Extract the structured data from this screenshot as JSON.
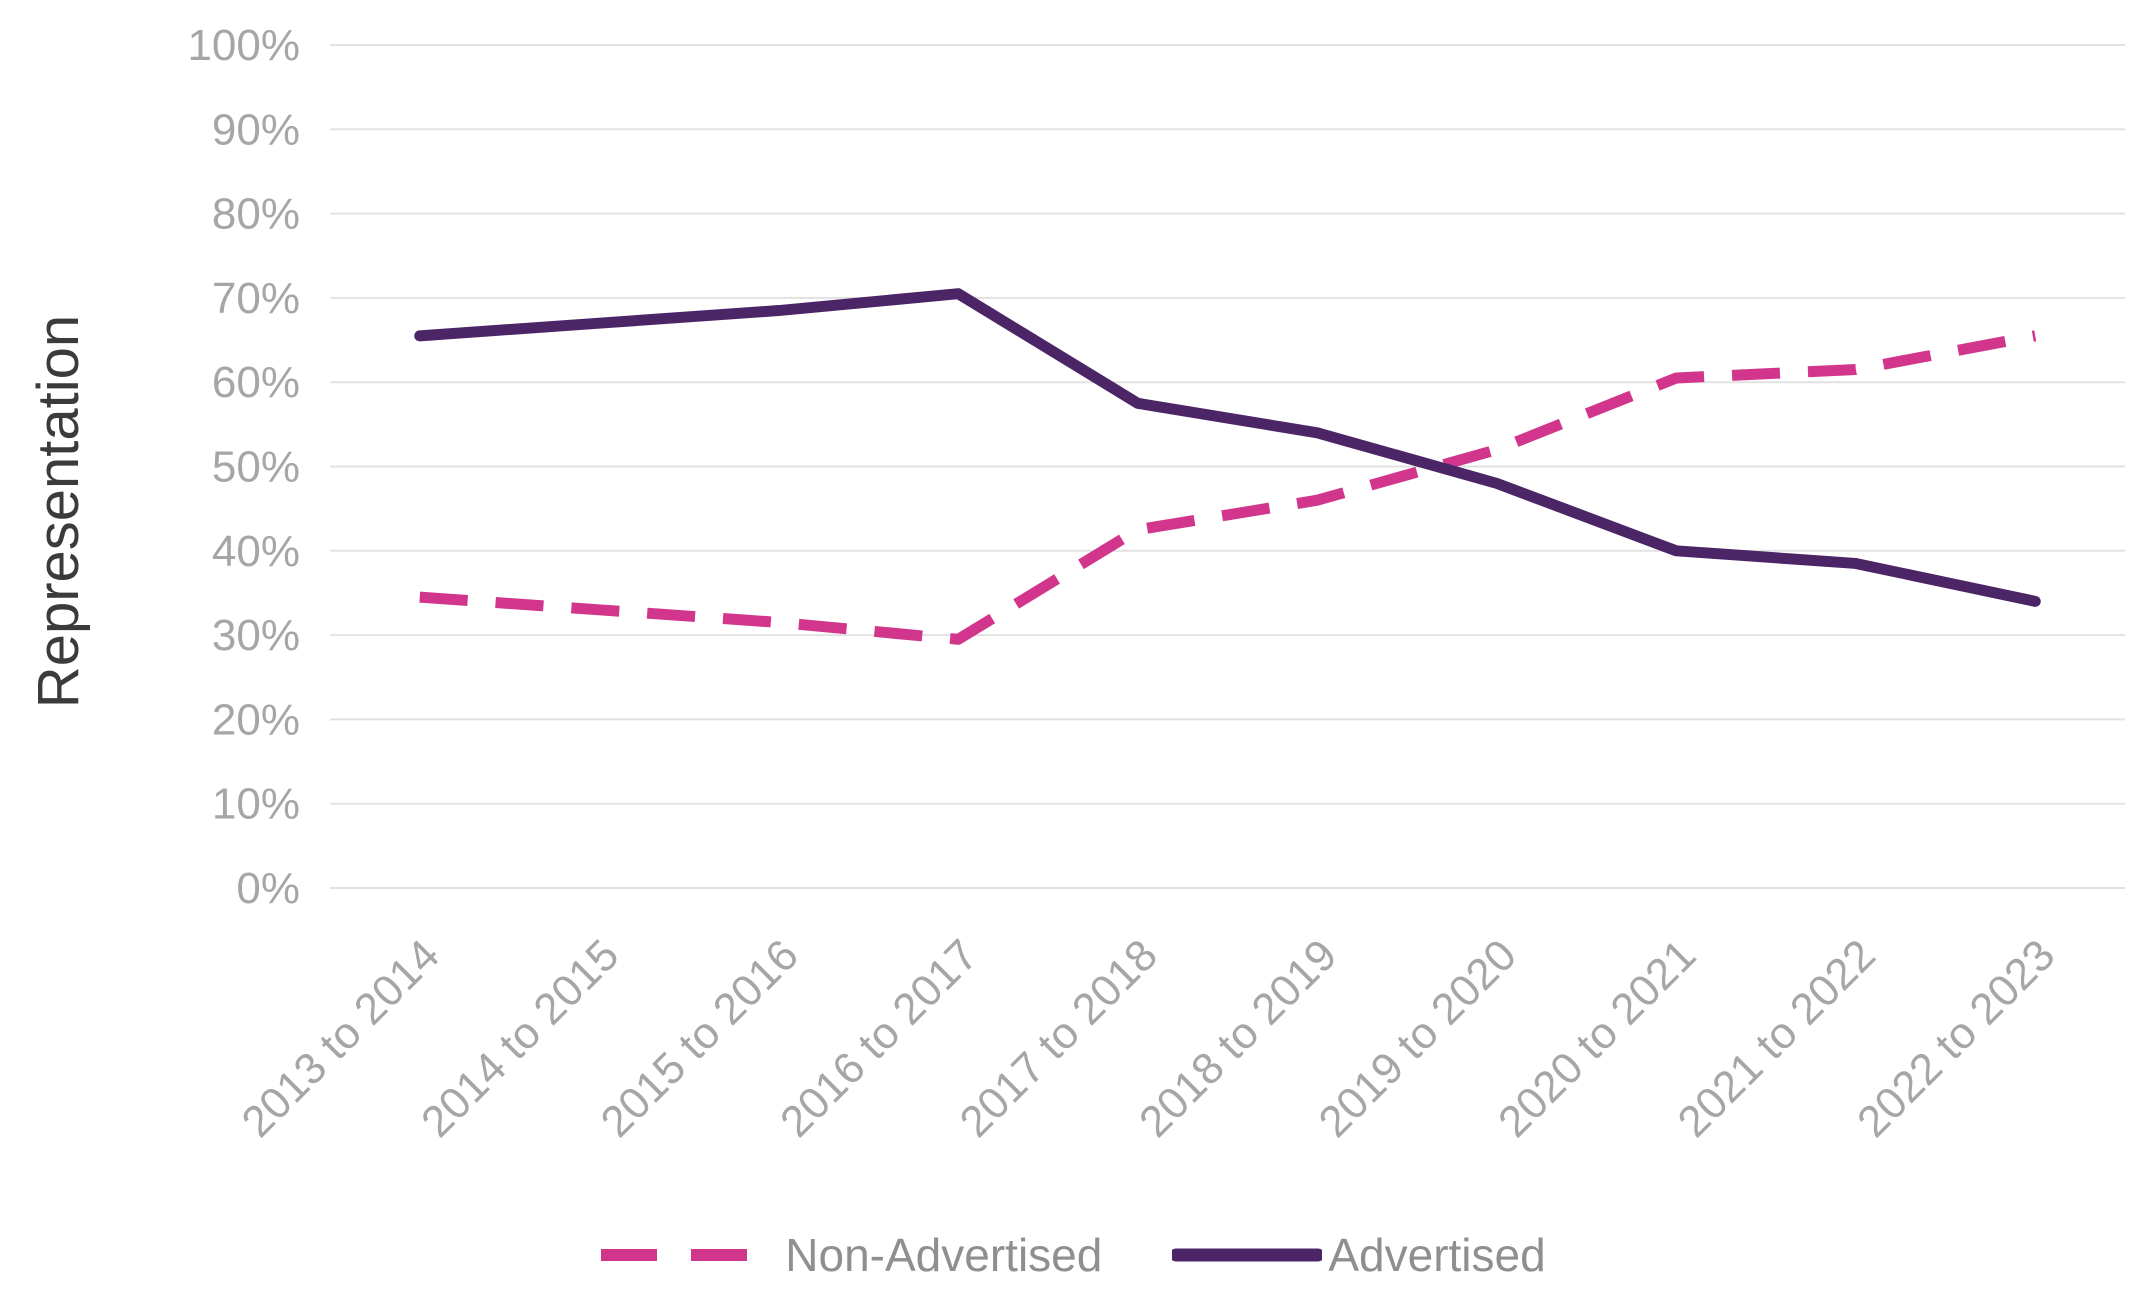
{
  "chart_data": {
    "type": "line",
    "title": "",
    "ylabel": "Representation",
    "xlabel": "",
    "ylim": [
      0,
      100
    ],
    "yticks": [
      0,
      10,
      20,
      30,
      40,
      50,
      60,
      70,
      80,
      90,
      100
    ],
    "ytick_suffix": "%",
    "grid": true,
    "legend_position": "bottom",
    "categories": [
      "2013 to 2014",
      "2014 to 2015",
      "2015 to 2016",
      "2016 to 2017",
      "2017 to 2018",
      "2018 to 2019",
      "2019 to 2020",
      "2020 to 2021",
      "2021 to 2022",
      "2022 to 2023"
    ],
    "series": [
      {
        "name": "Non-Advertised",
        "color": "#D2368C",
        "style": "dashed",
        "values": [
          34.5,
          33,
          31.5,
          29.5,
          42.5,
          46,
          52,
          60.5,
          61.5,
          65.5
        ]
      },
      {
        "name": "Advertised",
        "color": "#4C2566",
        "style": "solid",
        "values": [
          65.5,
          67,
          68.5,
          70.5,
          57.5,
          54,
          48,
          40,
          38.5,
          34
        ]
      }
    ]
  },
  "colors": {
    "gridline": "#E2E2E2",
    "tick_label": "#A6A6A6",
    "axis_title": "#3B3B3B",
    "legend_text": "#8F8F8F",
    "background": "#FFFFFF"
  }
}
